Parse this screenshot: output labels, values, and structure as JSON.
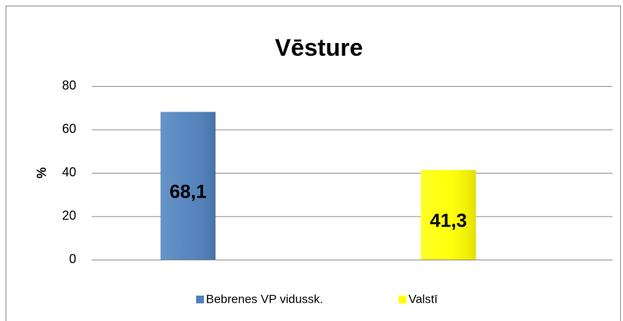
{
  "chart_data": {
    "type": "bar",
    "title": "Vēsture",
    "y_label": "%",
    "categories": [
      null,
      null
    ],
    "series": [
      {
        "name": "Bebrenes VP vidussk.",
        "color": "#4f81bd",
        "values": [
          68.1,
          null
        ],
        "value_labels": [
          "68,1",
          null
        ]
      },
      {
        "name": "Valstī",
        "color": "#ffff00",
        "values": [
          null,
          41.3
        ],
        "value_labels": [
          null,
          "41,3"
        ]
      }
    ],
    "ylim": [
      0,
      80
    ],
    "yticks": [
      0,
      20,
      40,
      60,
      80
    ],
    "grid": true,
    "legend": "bottom"
  }
}
